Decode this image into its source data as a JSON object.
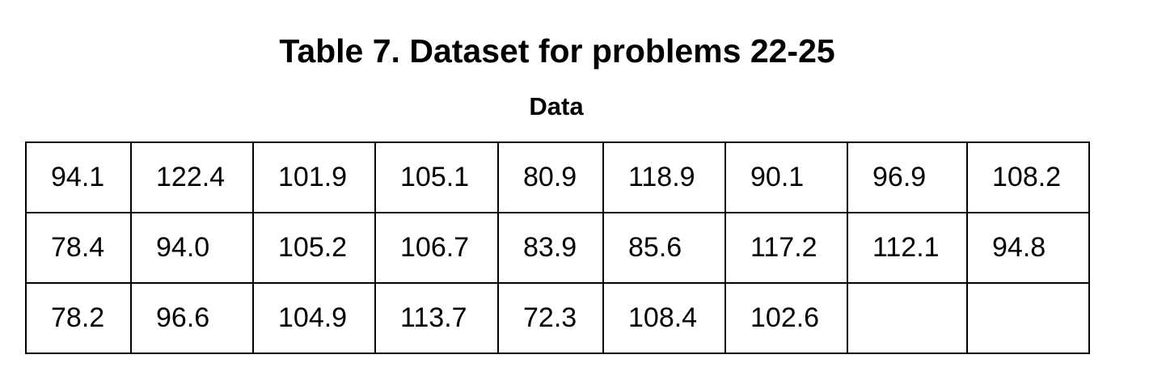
{
  "title": "Table 7. Dataset for problems 22-25",
  "subtitle": "Data",
  "table": {
    "rows": [
      [
        "94.1",
        "122.4",
        "101.9",
        "105.1",
        "80.9",
        "118.9",
        "90.1",
        "96.9",
        "108.2"
      ],
      [
        "78.4",
        "94.0",
        "105.2",
        "106.7",
        "83.9",
        "85.6",
        "117.2",
        "112.1",
        "94.8"
      ],
      [
        "78.2",
        "96.6",
        "104.9",
        "113.7",
        "72.3",
        "108.4",
        "102.6"
      ]
    ]
  }
}
